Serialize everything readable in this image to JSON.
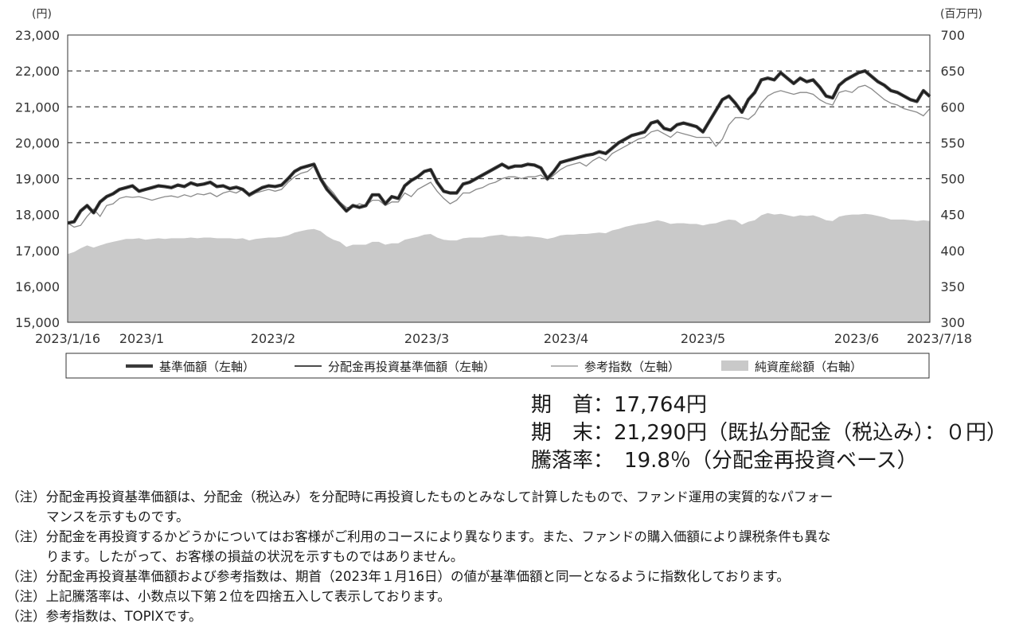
{
  "chart_data": {
    "type": "line",
    "left_axis_unit": "(円)",
    "right_axis_unit": "(百万円)",
    "left_ticks": [
      "23,000",
      "22,000",
      "21,000",
      "20,000",
      "19,000",
      "18,000",
      "17,000",
      "16,000",
      "15,000"
    ],
    "right_ticks": [
      "700",
      "650",
      "600",
      "550",
      "500",
      "450",
      "400",
      "350",
      "300"
    ],
    "ylim_left": [
      15000,
      23000
    ],
    "ylim_right": [
      300,
      700
    ],
    "x_labels": [
      "2023/1/16",
      "2023/1",
      "2023/2",
      "2023/3",
      "2023/4",
      "2023/5",
      "2023/6",
      "2023/7/18"
    ],
    "grid": "dashed horizontal at 19,000 / 20,000 / 21,000 / 22,000",
    "series": [
      {
        "name": "基準価額（左軸）",
        "axis": "left",
        "style": "thick dark line",
        "color": "#333333",
        "values": [
          17764,
          17800,
          18100,
          18250,
          18050,
          18350,
          18500,
          18580,
          18700,
          18750,
          18800,
          18650,
          18700,
          18750,
          18800,
          18780,
          18750,
          18820,
          18780,
          18880,
          18820,
          18850,
          18900,
          18780,
          18800,
          18720,
          18760,
          18700,
          18550,
          18650,
          18750,
          18800,
          18780,
          18820,
          19000,
          19200,
          19300,
          19350,
          19400,
          19000,
          18700,
          18500,
          18300,
          18100,
          18250,
          18200,
          18250,
          18550,
          18550,
          18300,
          18500,
          18450,
          18800,
          18950,
          19050,
          19200,
          19250,
          18900,
          18650,
          18600,
          18600,
          18850,
          18900,
          19000,
          19100,
          19200,
          19300,
          19400,
          19300,
          19350,
          19350,
          19400,
          19380,
          19300,
          19000,
          19200,
          19450,
          19500,
          19550,
          19600,
          19650,
          19680,
          19750,
          19700,
          19850,
          20000,
          20100,
          20200,
          20250,
          20300,
          20550,
          20600,
          20400,
          20350,
          20500,
          20550,
          20500,
          20450,
          20300,
          20600,
          20900,
          21200,
          21300,
          21100,
          20850,
          21200,
          21400,
          21750,
          21800,
          21750,
          21950,
          21800,
          21650,
          21800,
          21700,
          21750,
          21550,
          21300,
          21250,
          21600,
          21750,
          21850,
          21950,
          22000,
          21850,
          21700,
          21600,
          21450,
          21400,
          21300,
          21200,
          21150,
          21450,
          21290
        ]
      },
      {
        "name": "分配金再投資基準価額（左軸）",
        "axis": "left",
        "style": "thin dark line",
        "color": "#111111",
        "values": [
          17764,
          17800,
          18100,
          18250,
          18050,
          18350,
          18500,
          18580,
          18700,
          18750,
          18800,
          18650,
          18700,
          18750,
          18800,
          18780,
          18750,
          18820,
          18780,
          18880,
          18820,
          18850,
          18900,
          18780,
          18800,
          18720,
          18760,
          18700,
          18550,
          18650,
          18750,
          18800,
          18780,
          18820,
          19000,
          19200,
          19300,
          19350,
          19400,
          19000,
          18700,
          18500,
          18300,
          18100,
          18250,
          18200,
          18250,
          18550,
          18550,
          18300,
          18500,
          18450,
          18800,
          18950,
          19050,
          19200,
          19250,
          18900,
          18650,
          18600,
          18600,
          18850,
          18900,
          19000,
          19100,
          19200,
          19300,
          19400,
          19300,
          19350,
          19350,
          19400,
          19380,
          19300,
          19000,
          19200,
          19450,
          19500,
          19550,
          19600,
          19650,
          19680,
          19750,
          19700,
          19850,
          20000,
          20100,
          20200,
          20250,
          20300,
          20550,
          20600,
          20400,
          20350,
          20500,
          20550,
          20500,
          20450,
          20300,
          20600,
          20900,
          21200,
          21300,
          21100,
          20850,
          21200,
          21400,
          21750,
          21800,
          21750,
          21950,
          21800,
          21650,
          21800,
          21700,
          21750,
          21550,
          21300,
          21250,
          21600,
          21750,
          21850,
          21950,
          22000,
          21850,
          21700,
          21600,
          21450,
          21400,
          21300,
          21200,
          21150,
          21450,
          21290
        ]
      },
      {
        "name": "参考指数（左軸）",
        "axis": "left",
        "style": "thin gray line",
        "color": "#8a8a8a",
        "values": [
          17764,
          17650,
          17700,
          17950,
          18150,
          17950,
          18250,
          18300,
          18450,
          18500,
          18480,
          18500,
          18450,
          18400,
          18450,
          18500,
          18520,
          18480,
          18550,
          18500,
          18580,
          18550,
          18600,
          18500,
          18600,
          18650,
          18600,
          18700,
          18500,
          18600,
          18650,
          18700,
          18650,
          18700,
          18900,
          19050,
          19150,
          19200,
          19350,
          19050,
          18800,
          18600,
          18350,
          18200,
          18200,
          18300,
          18250,
          18400,
          18400,
          18250,
          18350,
          18350,
          18600,
          18500,
          18700,
          18800,
          18900,
          18650,
          18450,
          18300,
          18400,
          18600,
          18600,
          18700,
          18750,
          18850,
          18900,
          19000,
          19050,
          19050,
          19000,
          19050,
          19050,
          19100,
          18950,
          19100,
          19250,
          19350,
          19400,
          19450,
          19350,
          19500,
          19600,
          19500,
          19700,
          19800,
          19900,
          20000,
          20100,
          20150,
          20300,
          20350,
          20250,
          20150,
          20300,
          20250,
          20200,
          20150,
          20150,
          20150,
          19900,
          20100,
          20500,
          20700,
          20700,
          20650,
          20800,
          21100,
          21300,
          21400,
          21450,
          21400,
          21350,
          21400,
          21400,
          21350,
          21200,
          21100,
          21050,
          21400,
          21450,
          21400,
          21550,
          21600,
          21500,
          21350,
          21200,
          21100,
          21050,
          20950,
          20900,
          20850,
          20750,
          20950
        ]
      },
      {
        "name": "純資産総額（右軸）",
        "axis": "right",
        "style": "light gray area",
        "color": "#c9c9c9",
        "values": [
          395,
          398,
          403,
          407,
          404,
          407,
          410,
          412,
          414,
          416,
          416,
          417,
          415,
          416,
          417,
          416,
          417,
          417,
          417,
          418,
          417,
          418,
          418,
          417,
          417,
          417,
          416,
          417,
          414,
          416,
          417,
          418,
          418,
          419,
          421,
          425,
          427,
          429,
          430,
          427,
          420,
          415,
          412,
          405,
          408,
          408,
          408,
          412,
          412,
          408,
          410,
          410,
          415,
          417,
          419,
          422,
          423,
          418,
          415,
          414,
          414,
          417,
          418,
          418,
          418,
          420,
          421,
          422,
          420,
          420,
          419,
          420,
          419,
          418,
          416,
          418,
          421,
          422,
          422,
          423,
          423,
          424,
          425,
          424,
          428,
          430,
          433,
          435,
          437,
          438,
          440,
          442,
          440,
          437,
          438,
          438,
          437,
          437,
          435,
          437,
          438,
          441,
          443,
          442,
          436,
          440,
          442,
          449,
          452,
          450,
          451,
          449,
          447,
          449,
          448,
          449,
          446,
          442,
          441,
          447,
          449,
          450,
          450,
          451,
          450,
          448,
          446,
          443,
          443,
          443,
          442,
          441,
          442,
          441
        ]
      }
    ],
    "legend_position": "bottom"
  },
  "summary": {
    "start_label": "期　首：",
    "start_value": "17,764円",
    "end_label": "期　末：",
    "end_value": "21,290円",
    "end_note": "（既払分配金（税込み）：０円）",
    "change_label": "騰落率：",
    "change_value": "19.8％",
    "change_note": "（分配金再投資ベース）"
  },
  "notes": [
    {
      "text": "（注）分配金再投資基準価額は、分配金（税込み）を分配時に再投資したものとみなして計算したもので、ファンド運用の実質的なパフォー",
      "cont": "マンスを示すものです。"
    },
    {
      "text": "（注）分配金を再投資するかどうかについてはお客様がご利用のコースにより異なります。また、ファンドの購入価額により課税条件も異な",
      "cont": "ります。したがって、お客様の損益の状況を示すものではありません。"
    },
    {
      "text": "（注）分配金再投資基準価額および参考指数は、期首（2023年１月16日）の値が基準価額と同一となるように指数化しております。",
      "cont": ""
    },
    {
      "text": "（注）上記騰落率は、小数点以下第２位を四捨五入して表示しております。",
      "cont": ""
    },
    {
      "text": "（注）参考指数は、TOPIXです。",
      "cont": ""
    }
  ]
}
